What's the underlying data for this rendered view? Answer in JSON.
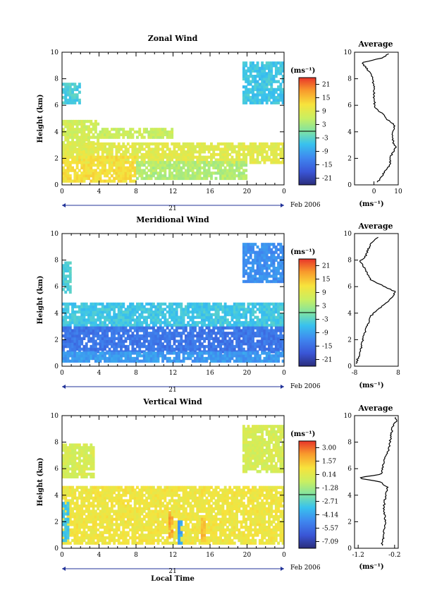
{
  "chart_data": [
    {
      "type": "heatmap",
      "title": "Zonal Wind",
      "ylabel": "Height (km)",
      "ylim": [
        0,
        10
      ],
      "xlim": [
        0,
        24
      ],
      "x_ticks": [
        "0",
        "4",
        "8",
        "12",
        "16",
        "20",
        "0"
      ],
      "y_ticks": [
        "0",
        "2",
        "4",
        "6",
        "8",
        "10"
      ],
      "date_day": "21",
      "date_label": "Feb 2006",
      "colorbar_unit": "(ms⁻¹)",
      "colorbar_ticks": [
        "-21",
        "-15",
        "-9",
        "-3",
        "3",
        "9",
        "15",
        "21"
      ],
      "colorbar_range": [
        -24,
        24
      ],
      "regions": [
        {
          "t": [
            0,
            1.8
          ],
          "h": [
            6.1,
            7.7
          ],
          "v": -4
        },
        {
          "t": [
            19.5,
            24
          ],
          "h": [
            6.1,
            9.3
          ],
          "v": -5
        },
        {
          "t": [
            0,
            4
          ],
          "h": [
            2.5,
            4.8
          ],
          "v": 7
        },
        {
          "t": [
            4,
            12
          ],
          "h": [
            3.5,
            4.3
          ],
          "v": 6
        },
        {
          "t": [
            0,
            24
          ],
          "h": [
            1.6,
            3.2
          ],
          "v": 9
        },
        {
          "t": [
            0,
            8
          ],
          "h": [
            0.2,
            2.2
          ],
          "v": 12
        },
        {
          "t": [
            8,
            20
          ],
          "h": [
            0.4,
            1.8
          ],
          "v": 4
        }
      ],
      "profile": {
        "title": "Average",
        "xlabel": "(ms⁻¹)",
        "xlim": [
          -8,
          10
        ],
        "x_ticks": [
          "0",
          "10"
        ],
        "y_ticks": [
          "0",
          "2",
          "4",
          "6",
          "8",
          "10"
        ],
        "h": [
          0.2,
          1.0,
          1.5,
          2.2,
          2.8,
          3.2,
          3.8,
          4.5,
          5.0,
          5.3,
          5.8,
          6.5,
          7.5,
          8.3,
          8.8,
          9.2,
          9.6,
          9.9
        ],
        "v": [
          1.5,
          4.5,
          6.5,
          7.0,
          9.0,
          8.0,
          7.5,
          8.5,
          5.0,
          4.0,
          0.5,
          0.0,
          0.0,
          -1.0,
          -3.0,
          -5.0,
          4.0,
          6.0
        ]
      }
    },
    {
      "type": "heatmap",
      "title": "Meridional Wind",
      "ylabel": "Height (km)",
      "ylim": [
        0,
        10
      ],
      "xlim": [
        0,
        24
      ],
      "x_ticks": [
        "0",
        "4",
        "8",
        "12",
        "16",
        "20",
        "0"
      ],
      "y_ticks": [
        "0",
        "2",
        "4",
        "6",
        "8",
        "10"
      ],
      "date_day": "21",
      "date_label": "Feb 2006",
      "colorbar_unit": "(ms⁻¹)",
      "colorbar_ticks": [
        "-21",
        "-15",
        "-9",
        "-3",
        "3",
        "9",
        "15",
        "21"
      ],
      "colorbar_range": [
        -24,
        24
      ],
      "regions": [
        {
          "t": [
            0,
            1.0
          ],
          "h": [
            5.5,
            7.8
          ],
          "v": -4
        },
        {
          "t": [
            19.5,
            24
          ],
          "h": [
            6.3,
            9.2
          ],
          "v": -11
        },
        {
          "t": [
            0,
            24
          ],
          "h": [
            3.0,
            4.8
          ],
          "v": -5
        },
        {
          "t": [
            0,
            24
          ],
          "h": [
            1.0,
            3.0
          ],
          "v": -14
        },
        {
          "t": [
            0,
            24
          ],
          "h": [
            0.3,
            1.0
          ],
          "v": -10
        }
      ],
      "profile": {
        "title": "Average",
        "xlabel": "(ms⁻¹)",
        "xlim": [
          -8,
          8
        ],
        "x_ticks": [
          "-8",
          "8"
        ],
        "y_ticks": [
          "0",
          "2",
          "4",
          "6",
          "8",
          "10"
        ],
        "h": [
          0.2,
          1.0,
          2.0,
          3.0,
          3.8,
          4.5,
          5.0,
          5.6,
          6.0,
          6.5,
          7.3,
          7.9,
          8.3,
          8.8,
          9.3,
          9.8
        ],
        "v": [
          -7.5,
          -6.0,
          -5.0,
          -3.5,
          -2.0,
          2.0,
          5.0,
          7.0,
          3.0,
          -2.0,
          -4.0,
          -6.0,
          -4.0,
          -3.0,
          -2.0,
          1.0
        ]
      }
    },
    {
      "type": "heatmap",
      "title": "Vertical Wind",
      "xlabel": "Local Time",
      "ylabel": "Height (km)",
      "ylim": [
        0,
        10
      ],
      "xlim": [
        0,
        24
      ],
      "x_ticks": [
        "0",
        "4",
        "8",
        "12",
        "16",
        "20",
        "0"
      ],
      "y_ticks": [
        "0",
        "2",
        "4",
        "6",
        "8",
        "10"
      ],
      "date_day": "21",
      "date_label": "Feb 2006",
      "colorbar_unit": "(ms⁻¹)",
      "colorbar_ticks": [
        "-7.09",
        "-5.57",
        "-4.14",
        "-2.71",
        "-1.28",
        "0.14",
        "1.57",
        "3.00"
      ],
      "colorbar_range": [
        -8.5,
        4.43
      ],
      "regions": [
        {
          "t": [
            0,
            3.3
          ],
          "h": [
            5.3,
            7.9
          ],
          "v": 0.0
        },
        {
          "t": [
            19.5,
            24
          ],
          "h": [
            5.7,
            9.2
          ],
          "v": 0.0
        },
        {
          "t": [
            0,
            24
          ],
          "h": [
            0.3,
            4.6
          ],
          "v": 0.9
        },
        {
          "t": [
            0,
            0.6
          ],
          "h": [
            0.5,
            3.5
          ],
          "v": -3.5
        },
        {
          "t": [
            12.5,
            13.0
          ],
          "h": [
            0.3,
            2.0
          ],
          "v": -4.5
        },
        {
          "t": [
            11.5,
            12.0
          ],
          "h": [
            0.8,
            2.8
          ],
          "v": 2.6
        },
        {
          "t": [
            15.0,
            15.5
          ],
          "h": [
            0.5,
            2.2
          ],
          "v": 2.0
        }
      ],
      "profile": {
        "title": "Average",
        "xlabel": "(ms⁻¹)",
        "xlim": [
          -1.3,
          -0.1
        ],
        "x_ticks": [
          "-1.2",
          "-0.2"
        ],
        "y_ticks": [
          "0",
          "2",
          "4",
          "6",
          "8",
          "10"
        ],
        "h": [
          0.2,
          1.0,
          2.0,
          3.0,
          4.0,
          4.6,
          5.0,
          5.3,
          5.6,
          6.5,
          7.5,
          8.5,
          9.2,
          9.6,
          9.9
        ],
        "v": [
          -0.55,
          -0.5,
          -0.45,
          -0.5,
          -0.45,
          -0.4,
          -0.6,
          -1.2,
          -0.55,
          -0.5,
          -0.35,
          -0.3,
          -0.25,
          -0.15,
          -0.2
        ]
      }
    }
  ]
}
